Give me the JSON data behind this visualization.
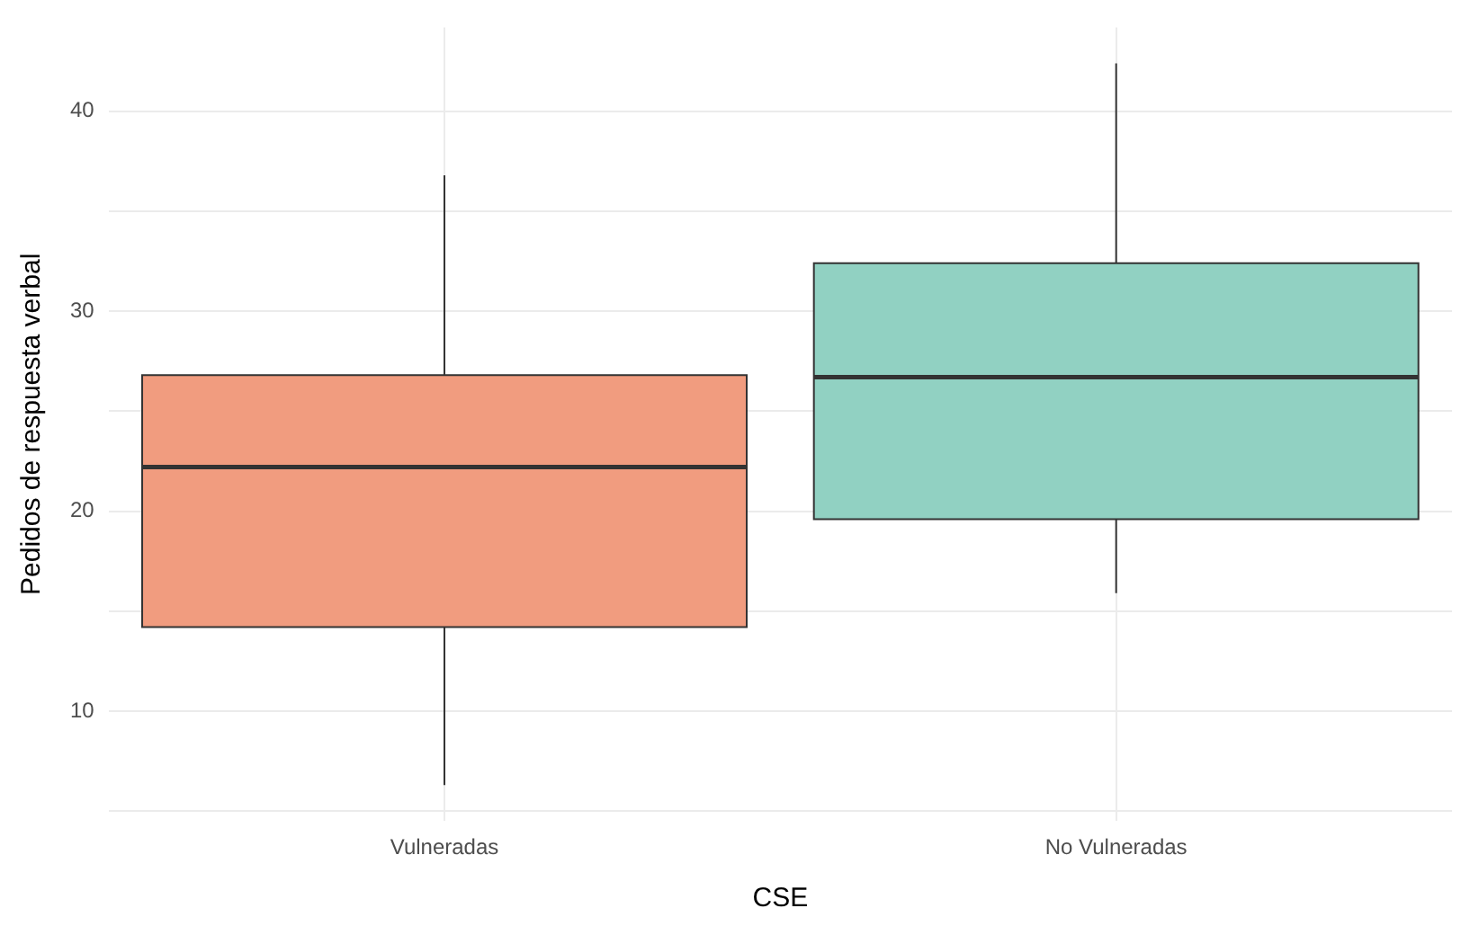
{
  "chart_data": {
    "type": "box",
    "xlabel": "CSE",
    "ylabel": "Pedidos de respuesta verbal",
    "categories": [
      "Vulneradas",
      "No Vulneradas"
    ],
    "boxes": [
      {
        "low": 6.3,
        "q1": 14.2,
        "median": 22.2,
        "q3": 26.8,
        "high": 36.8
      },
      {
        "low": 15.9,
        "q1": 19.6,
        "median": 26.7,
        "q3": 32.4,
        "high": 42.4
      }
    ],
    "colors": [
      "#f19c7f",
      "#91d1c2"
    ],
    "ylim": [
      4.5,
      44.2
    ],
    "yticks": [
      {
        "value": 5,
        "label": null
      },
      10,
      {
        "value": 15,
        "label": null
      },
      20,
      {
        "value": 25,
        "label": null
      },
      30,
      {
        "value": 35,
        "label": null
      },
      40
    ],
    "grid": true,
    "legend": false
  }
}
